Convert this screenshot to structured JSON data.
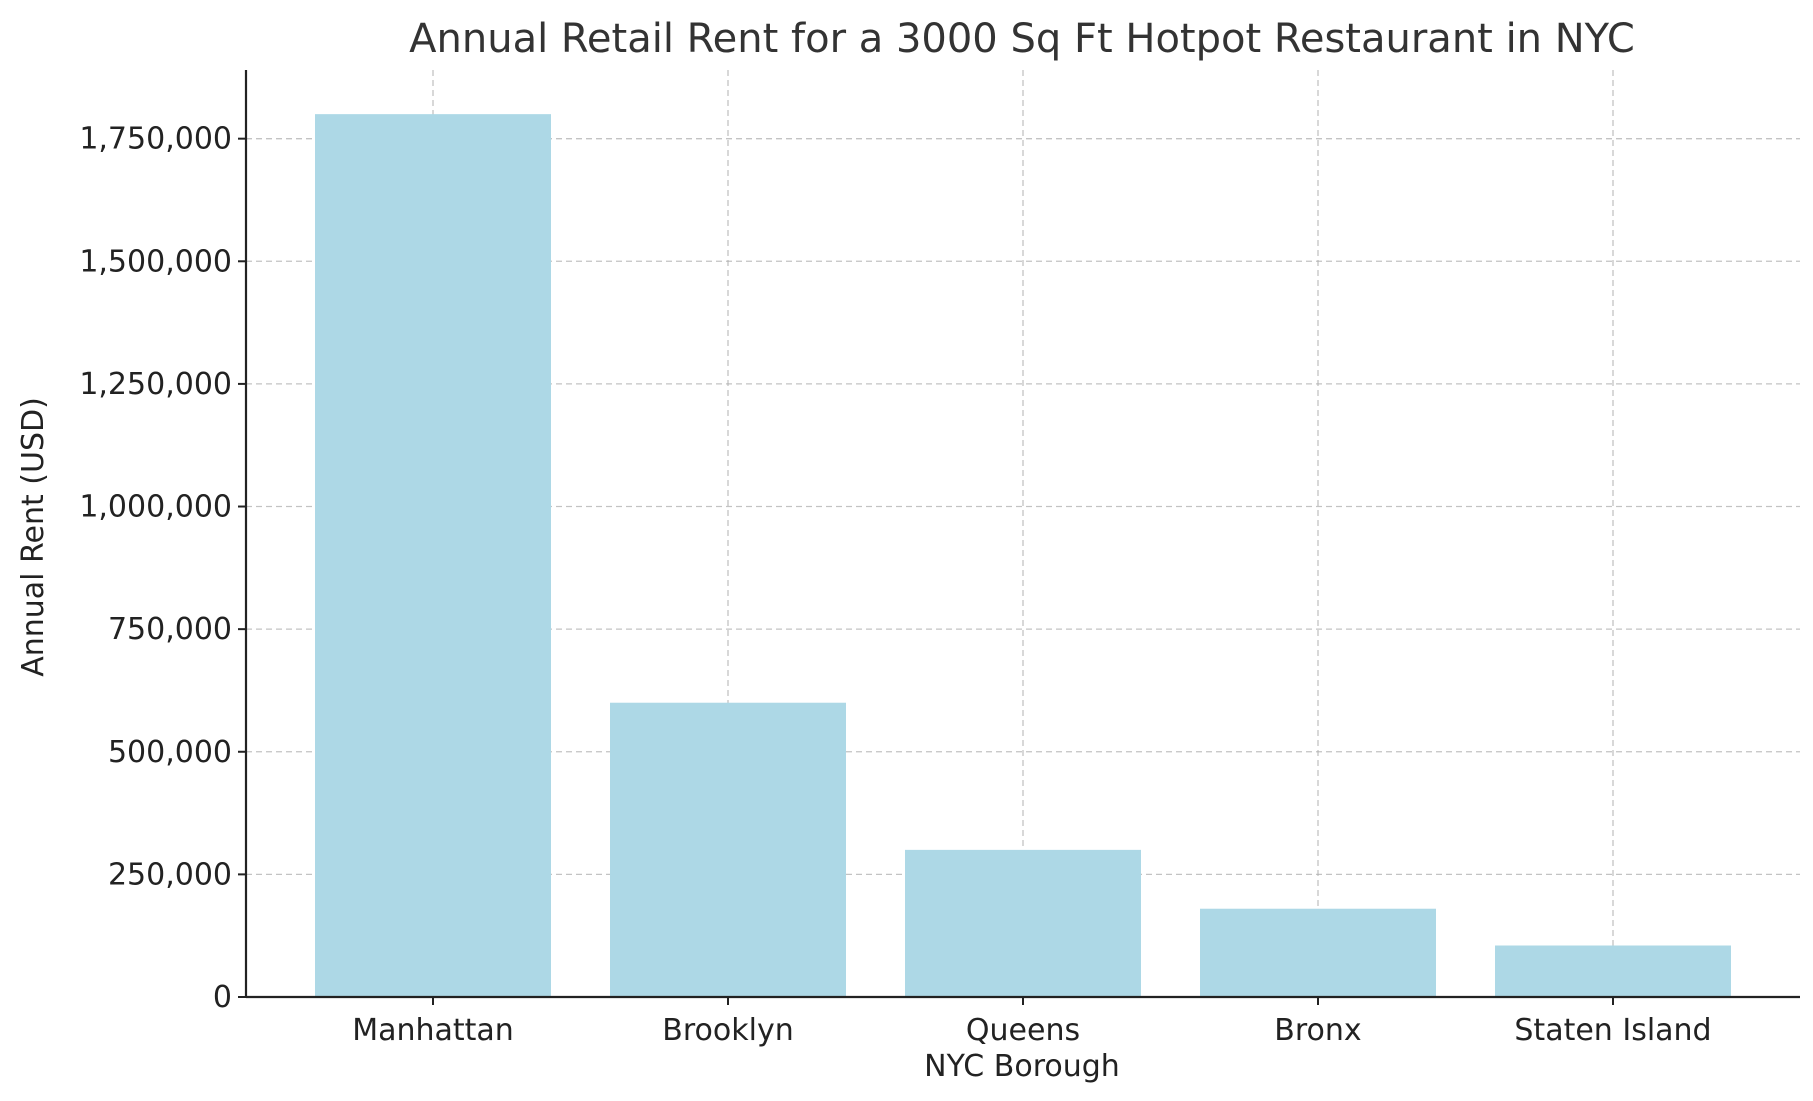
{
  "chart_data": {
    "type": "bar",
    "title": "Annual Retail Rent for a 3000 Sq Ft Hotpot Restaurant in NYC",
    "xlabel": "NYC Borough",
    "ylabel": "Annual Rent (USD)",
    "categories": [
      "Manhattan",
      "Brooklyn",
      "Queens",
      "Bronx",
      "Staten Island"
    ],
    "values": [
      1800000,
      600000,
      300000,
      180000,
      105000
    ],
    "ylim": [
      0,
      1890000
    ],
    "yticks": [
      0,
      250000,
      500000,
      750000,
      1000000,
      1250000,
      1500000,
      1750000
    ],
    "ytick_labels": [
      "0",
      "250,000",
      "500,000",
      "750,000",
      "1,000,000",
      "1,250,000",
      "1,500,000",
      "1,750,000"
    ],
    "grid": true,
    "bar_color": "#add8e6",
    "legend": "none"
  }
}
